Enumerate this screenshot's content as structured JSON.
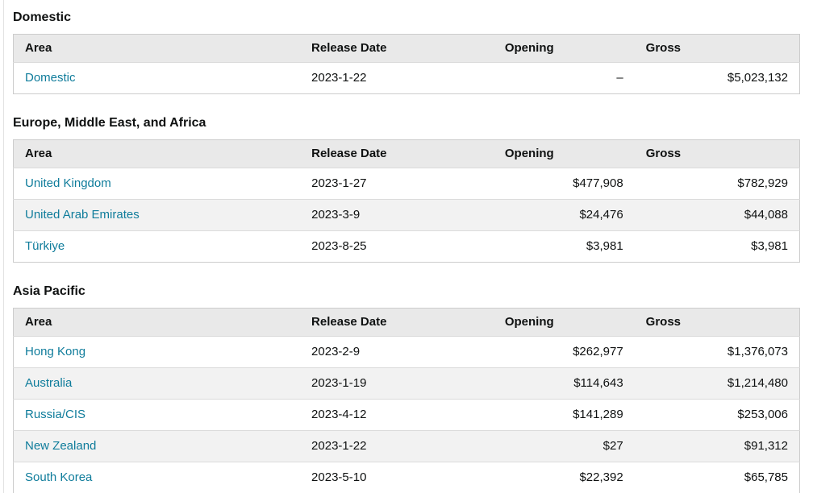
{
  "colors": {
    "link": "#0f7c9b",
    "header_bg": "#e9e9e9",
    "stripe_bg": "#f2f2f2",
    "border": "#cccccc",
    "text": "#0f1111",
    "page_bg": "#ffffff"
  },
  "columns": {
    "area": "Area",
    "release_date": "Release Date",
    "opening": "Opening",
    "gross": "Gross"
  },
  "sections": [
    {
      "title": "Domestic",
      "rows": [
        {
          "area": "Domestic",
          "release_date": "2023-1-22",
          "opening": "–",
          "gross": "$5,023,132"
        }
      ]
    },
    {
      "title": "Europe, Middle East, and Africa",
      "rows": [
        {
          "area": "United Kingdom",
          "release_date": "2023-1-27",
          "opening": "$477,908",
          "gross": "$782,929"
        },
        {
          "area": "United Arab Emirates",
          "release_date": "2023-3-9",
          "opening": "$24,476",
          "gross": "$44,088"
        },
        {
          "area": "Türkiye",
          "release_date": "2023-8-25",
          "opening": "$3,981",
          "gross": "$3,981"
        }
      ]
    },
    {
      "title": "Asia Pacific",
      "rows": [
        {
          "area": "Hong Kong",
          "release_date": "2023-2-9",
          "opening": "$262,977",
          "gross": "$1,376,073"
        },
        {
          "area": "Australia",
          "release_date": "2023-1-19",
          "opening": "$114,643",
          "gross": "$1,214,480"
        },
        {
          "area": "Russia/CIS",
          "release_date": "2023-4-12",
          "opening": "$141,289",
          "gross": "$253,006"
        },
        {
          "area": "New Zealand",
          "release_date": "2023-1-22",
          "opening": "$27",
          "gross": "$91,312"
        },
        {
          "area": "South Korea",
          "release_date": "2023-5-10",
          "opening": "$22,392",
          "gross": "$65,785"
        }
      ]
    }
  ]
}
